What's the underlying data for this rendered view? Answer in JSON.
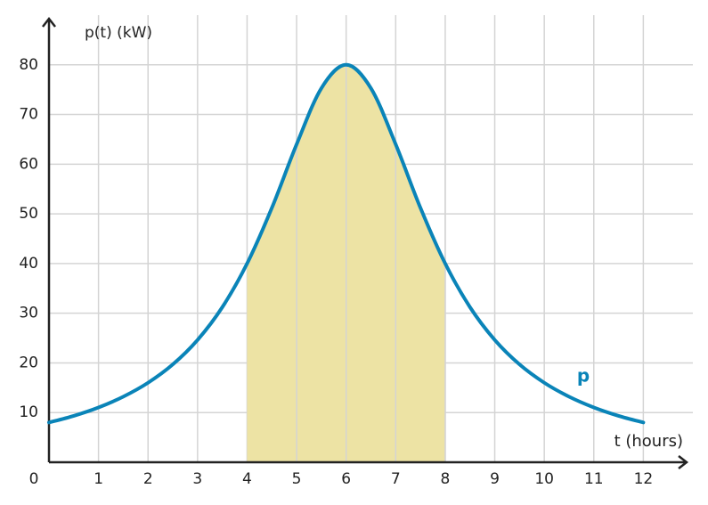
{
  "chart_data": {
    "type": "line",
    "y_label": "p(t) (kW)",
    "x_label": "t (hours)",
    "x": [
      0,
      0.5,
      1,
      1.5,
      2,
      2.5,
      3,
      3.5,
      4,
      4.5,
      5,
      5.5,
      6,
      6.5,
      7,
      7.5,
      8,
      8.5,
      9,
      9.5,
      10,
      10.5,
      11,
      11.5,
      12
    ],
    "series": [
      {
        "name": "p",
        "color": "#0a84b8",
        "values": [
          8,
          9.34,
          11.03,
          13.2,
          16,
          19.69,
          24.62,
          31.22,
          40,
          51.2,
          64,
          75.29,
          80,
          75.29,
          64,
          51.2,
          40,
          31.22,
          24.62,
          19.69,
          16,
          13.2,
          11.03,
          9.34,
          8
        ]
      }
    ],
    "shaded_range": [
      4,
      8
    ],
    "shade_color": "#ede3a4",
    "xlim": [
      0,
      13
    ],
    "ylim": [
      0,
      90
    ],
    "xticks": [
      0,
      1,
      2,
      3,
      4,
      5,
      6,
      7,
      8,
      9,
      10,
      11,
      12
    ],
    "yticks": [
      10,
      20,
      30,
      40,
      50,
      60,
      70,
      80
    ],
    "grid": true
  }
}
